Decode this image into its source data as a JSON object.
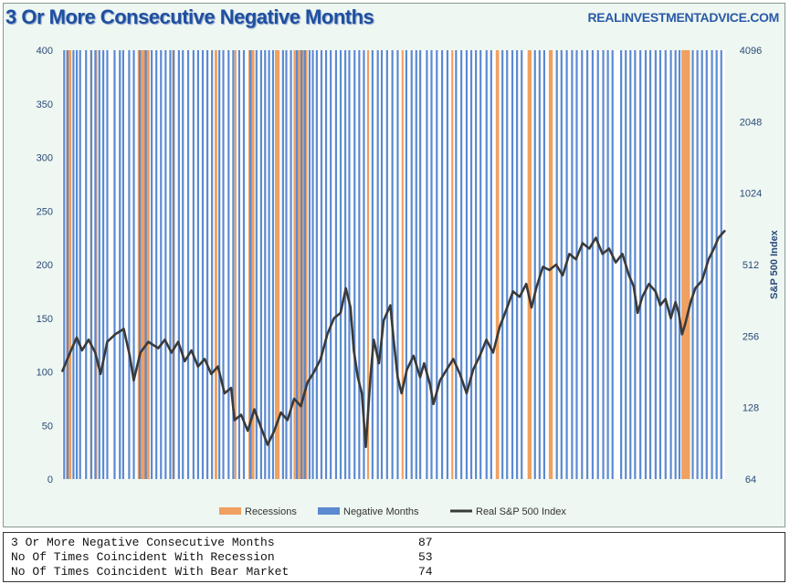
{
  "header": {
    "title": "3 Or More Consecutive Negative Months",
    "site": "REALINVESTMENTADVICE.COM"
  },
  "colors": {
    "recession": "#f0a060",
    "negative": "#5b8ad0",
    "line": "#3a3a3a",
    "axis_text": "#2a4a7a"
  },
  "chart_data": {
    "type": "line",
    "title": "3 Or More Consecutive Negative Months",
    "left_axis": {
      "min": 0,
      "max": 400,
      "ticks": [
        "0",
        "50",
        "100",
        "150",
        "200",
        "250",
        "300",
        "350",
        "400"
      ]
    },
    "right_axis": {
      "label": "S&P 500 Index",
      "scale": "log2",
      "min": 64,
      "max": 4096,
      "ticks": [
        "64",
        "128",
        "256",
        "512",
        "1024",
        "2048",
        "4096"
      ]
    },
    "x_domain": [
      0,
      100
    ],
    "recessions": [
      [
        0.6,
        1.4
      ],
      [
        4.2,
        4.5
      ],
      [
        4.9,
        5.3
      ],
      [
        11.4,
        13.2
      ],
      [
        16.6,
        17.0
      ],
      [
        23.0,
        23.4
      ],
      [
        26.0,
        26.3
      ],
      [
        28.1,
        29.0
      ],
      [
        32.1,
        32.8
      ],
      [
        34.9,
        37.0
      ],
      [
        46.0,
        46.3
      ],
      [
        51.2,
        51.5
      ],
      [
        58.7,
        59.0
      ],
      [
        65.4,
        65.9
      ],
      [
        70.2,
        70.8
      ],
      [
        73.4,
        74.0
      ],
      [
        93.4,
        94.7
      ]
    ],
    "negative_months": [
      0.3,
      0.8,
      1.7,
      2.2,
      2.7,
      3.6,
      4.4,
      5.0,
      5.6,
      6.2,
      6.8,
      7.9,
      8.7,
      9.2,
      10.1,
      10.8,
      11.7,
      12.6,
      13.5,
      14.2,
      14.9,
      15.6,
      16.3,
      16.8,
      17.6,
      18.2,
      19.0,
      19.8,
      20.5,
      21.2,
      21.9,
      22.6,
      23.7,
      24.3,
      25.1,
      25.8,
      26.7,
      27.4,
      28.4,
      29.3,
      30.0,
      30.6,
      31.2,
      31.8,
      33.3,
      33.8,
      34.5,
      35.4,
      36.1,
      36.6,
      37.3,
      37.8,
      38.4,
      39.1,
      39.8,
      40.5,
      41.3,
      42.0,
      42.7,
      43.3,
      44.1,
      44.8,
      45.5,
      46.8,
      47.6,
      48.2,
      49.0,
      49.8,
      50.6,
      51.9,
      52.7,
      53.4,
      54.0,
      55.0,
      55.7,
      56.5,
      57.3,
      58.1,
      59.4,
      60.2,
      61.0,
      61.7,
      62.4,
      63.1,
      64.0,
      64.7,
      66.4,
      67.1,
      67.9,
      68.6,
      69.3,
      71.3,
      72.0,
      72.7,
      74.6,
      75.3,
      76.1,
      76.9,
      77.6,
      78.4,
      79.2,
      80.0,
      80.8,
      81.6,
      82.3,
      83.0,
      84.3,
      85.0,
      85.7,
      86.4,
      87.2,
      88.0,
      88.7,
      89.5,
      90.2,
      91.0,
      91.8,
      92.5,
      93.1,
      95.1,
      95.8,
      96.5,
      97.2,
      98.0,
      98.7,
      99.4
    ],
    "series": [
      {
        "name": "Real S&P 500 Index",
        "points": [
          [
            0,
            100
          ],
          [
            1.2,
            118
          ],
          [
            2.2,
            132
          ],
          [
            3.0,
            120
          ],
          [
            4.0,
            130
          ],
          [
            5.0,
            118
          ],
          [
            5.8,
            98
          ],
          [
            6.8,
            128
          ],
          [
            8.0,
            135
          ],
          [
            9.3,
            140
          ],
          [
            10.2,
            115
          ],
          [
            10.8,
            92
          ],
          [
            11.8,
            118
          ],
          [
            13.0,
            128
          ],
          [
            14.5,
            122
          ],
          [
            15.5,
            130
          ],
          [
            16.5,
            118
          ],
          [
            17.5,
            128
          ],
          [
            18.5,
            110
          ],
          [
            19.5,
            120
          ],
          [
            20.5,
            105
          ],
          [
            21.5,
            112
          ],
          [
            22.5,
            98
          ],
          [
            23.5,
            105
          ],
          [
            24.5,
            80
          ],
          [
            25.5,
            85
          ],
          [
            26.0,
            55
          ],
          [
            27.0,
            60
          ],
          [
            28.0,
            45
          ],
          [
            29.0,
            65
          ],
          [
            30.0,
            48
          ],
          [
            31.0,
            32
          ],
          [
            32.0,
            45
          ],
          [
            33.0,
            62
          ],
          [
            34.0,
            55
          ],
          [
            35.0,
            75
          ],
          [
            36.0,
            68
          ],
          [
            37.0,
            90
          ],
          [
            38.0,
            100
          ],
          [
            39.0,
            112
          ],
          [
            40.0,
            135
          ],
          [
            41.0,
            150
          ],
          [
            42.0,
            155
          ],
          [
            42.8,
            178
          ],
          [
            43.5,
            160
          ],
          [
            44.0,
            120
          ],
          [
            44.6,
            95
          ],
          [
            45.2,
            80
          ],
          [
            45.8,
            30
          ],
          [
            46.5,
            95
          ],
          [
            47.0,
            130
          ],
          [
            47.8,
            108
          ],
          [
            48.5,
            148
          ],
          [
            49.5,
            162
          ],
          [
            50.0,
            130
          ],
          [
            50.6,
            95
          ],
          [
            51.2,
            80
          ],
          [
            52.0,
            102
          ],
          [
            53.0,
            115
          ],
          [
            54.0,
            95
          ],
          [
            54.6,
            108
          ],
          [
            55.5,
            88
          ],
          [
            56.0,
            70
          ],
          [
            57.0,
            92
          ],
          [
            58.0,
            102
          ],
          [
            59.0,
            112
          ],
          [
            60.0,
            98
          ],
          [
            61.0,
            80
          ],
          [
            62.0,
            102
          ],
          [
            63.0,
            115
          ],
          [
            64.0,
            130
          ],
          [
            65.0,
            118
          ],
          [
            66.0,
            142
          ],
          [
            67.0,
            158
          ],
          [
            68.0,
            175
          ],
          [
            69.0,
            170
          ],
          [
            70.0,
            182
          ],
          [
            70.8,
            160
          ],
          [
            71.5,
            178
          ],
          [
            72.5,
            198
          ],
          [
            73.5,
            195
          ],
          [
            74.5,
            200
          ],
          [
            75.5,
            190
          ],
          [
            76.5,
            210
          ],
          [
            77.5,
            205
          ],
          [
            78.5,
            220
          ],
          [
            79.5,
            215
          ],
          [
            80.5,
            225
          ],
          [
            81.5,
            210
          ],
          [
            82.5,
            215
          ],
          [
            83.5,
            202
          ],
          [
            84.5,
            210
          ],
          [
            85.5,
            190
          ],
          [
            86.2,
            180
          ],
          [
            86.8,
            155
          ],
          [
            87.5,
            170
          ],
          [
            88.5,
            182
          ],
          [
            89.5,
            175
          ],
          [
            90.2,
            162
          ],
          [
            91.0,
            168
          ],
          [
            91.8,
            150
          ],
          [
            92.5,
            165
          ],
          [
            93.0,
            155
          ],
          [
            93.5,
            135
          ],
          [
            94.0,
            145
          ],
          [
            94.8,
            165
          ],
          [
            95.5,
            178
          ],
          [
            96.5,
            185
          ],
          [
            97.5,
            205
          ],
          [
            98.3,
            215
          ],
          [
            99.0,
            225
          ],
          [
            100,
            232
          ]
        ]
      }
    ],
    "legend": [
      {
        "label": "Recessions",
        "kind": "bar-recession"
      },
      {
        "label": "Negative Months",
        "kind": "bar-negative"
      },
      {
        "label": "Real S&P 500 Index",
        "kind": "line"
      }
    ]
  },
  "stats": [
    {
      "label": "3 Or More Negative Consecutive Months",
      "value": "87"
    },
    {
      "label": "No Of Times Coincident With Recession",
      "value": "53"
    },
    {
      "label": "No Of Times Coincident With Bear Market",
      "value": "74"
    }
  ]
}
